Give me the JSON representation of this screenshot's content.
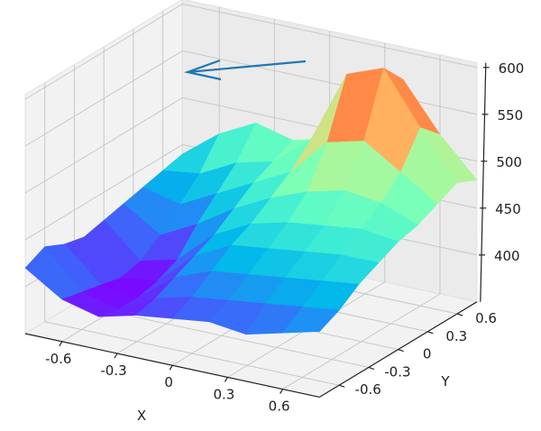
{
  "chart_data": {
    "type": "surface3d",
    "colormap": "rainbow",
    "xlabel": "X",
    "ylabel": "Y",
    "zlabel": "",
    "xlim": [
      -0.8,
      0.8
    ],
    "ylim": [
      -0.8,
      0.8
    ],
    "zlim": [
      350,
      605
    ],
    "grid": true,
    "x_ticks": [
      "-0.6",
      "-0.3",
      "0",
      "0.3",
      "0.6"
    ],
    "x_tick_values": [
      -0.6,
      -0.3,
      0,
      0.3,
      0.6
    ],
    "y_ticks": [
      "-0.6",
      "-0.3",
      "0",
      "0.3",
      "0.6"
    ],
    "y_tick_values": [
      -0.6,
      -0.3,
      0,
      0.3,
      0.6
    ],
    "z_ticks": [
      "400",
      "450",
      "500",
      "550",
      "600"
    ],
    "z_tick_values": [
      400,
      450,
      500,
      550,
      600
    ],
    "x": [
      -0.8,
      -0.6,
      -0.4,
      -0.2,
      0,
      0.2,
      0.4,
      0.6,
      0.8
    ],
    "y": [
      -0.8,
      -0.6,
      -0.4,
      -0.2,
      0,
      0.2,
      0.4,
      0.6,
      0.8
    ],
    "z": [
      [
        420,
        395,
        385,
        395,
        400,
        405,
        400,
        410,
        420
      ],
      [
        430,
        390,
        380,
        400,
        410,
        415,
        420,
        425,
        430
      ],
      [
        420,
        385,
        380,
        410,
        425,
        430,
        435,
        440,
        445
      ],
      [
        415,
        380,
        385,
        420,
        440,
        445,
        450,
        455,
        455
      ],
      [
        420,
        385,
        395,
        430,
        450,
        460,
        465,
        470,
        465
      ],
      [
        425,
        400,
        420,
        445,
        465,
        480,
        490,
        485,
        470
      ],
      [
        430,
        420,
        440,
        460,
        480,
        520,
        530,
        505,
        480
      ],
      [
        435,
        440,
        460,
        470,
        500,
        580,
        595,
        540,
        490
      ],
      [
        440,
        470,
        490,
        480,
        490,
        560,
        570,
        520,
        480
      ]
    ],
    "annotation_arrow_color": "#1f77b4"
  }
}
